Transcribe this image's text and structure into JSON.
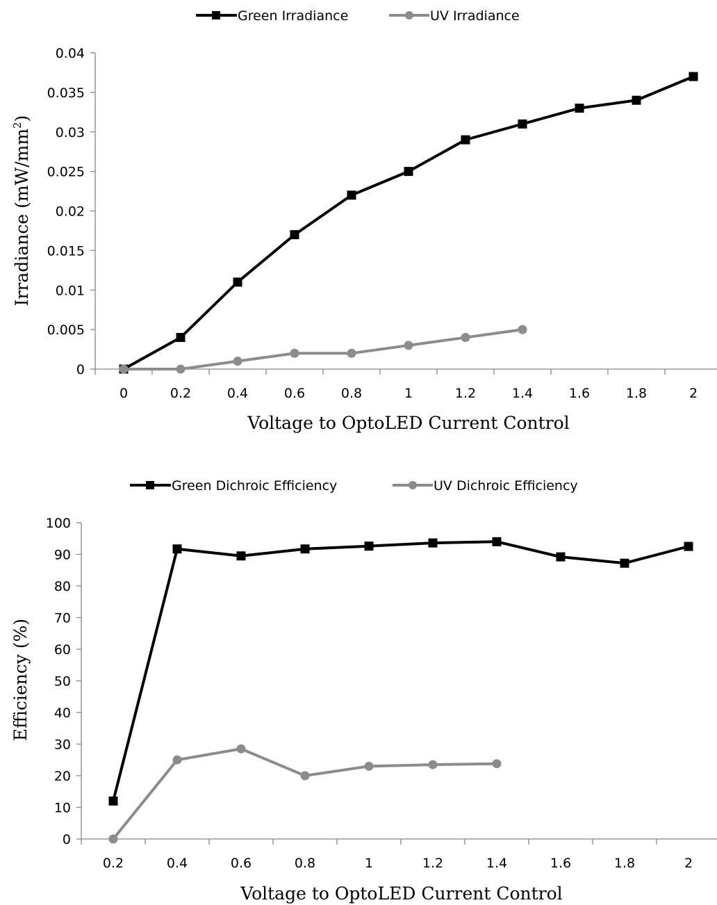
{
  "chart_data": [
    {
      "type": "line",
      "xlabel": "Voltage to OptoLED Current Control",
      "ylabel": "Irradiance (mW/mm",
      "ylabel_superscript": "2",
      "ylabel_suffix": ")",
      "categories": [
        "0",
        "0.2",
        "0.4",
        "0.6",
        "0.8",
        "1",
        "1.2",
        "1.4",
        "1.6",
        "1.8",
        "2"
      ],
      "ylim": [
        0,
        0.04
      ],
      "yticks": [
        "0",
        "0.005",
        "0.01",
        "0.015",
        "0.02",
        "0.025",
        "0.03",
        "0.035",
        "0.04"
      ],
      "grid": false,
      "legend_position": "top",
      "series": [
        {
          "name": "Green Irradiance",
          "color": "#000000",
          "marker": "square",
          "values": [
            0,
            0.004,
            0.011,
            0.017,
            0.022,
            0.025,
            0.029,
            0.031,
            0.033,
            0.034,
            0.037
          ]
        },
        {
          "name": "UV Irradiance",
          "color": "#8c8c8c",
          "marker": "circle",
          "values": [
            0,
            0,
            0.001,
            0.002,
            0.002,
            0.003,
            0.004,
            0.005,
            null,
            null,
            null
          ]
        }
      ]
    },
    {
      "type": "line",
      "xlabel": "Voltage to OptoLED Current Control",
      "ylabel": "Efficiency (%)",
      "categories": [
        "0.2",
        "0.4",
        "0.6",
        "0.8",
        "1",
        "1.2",
        "1.4",
        "1.6",
        "1.8",
        "2"
      ],
      "ylim": [
        0,
        100
      ],
      "yticks": [
        "0",
        "10",
        "20",
        "30",
        "40",
        "50",
        "60",
        "70",
        "80",
        "90",
        "100"
      ],
      "grid": false,
      "legend_position": "top",
      "series": [
        {
          "name": "Green Dichroic Efficiency",
          "color": "#000000",
          "marker": "square",
          "values": [
            12,
            91.7,
            89.5,
            91.7,
            92.6,
            93.6,
            94,
            89.2,
            87.2,
            92.5
          ]
        },
        {
          "name": "UV Dichroic Efficiency",
          "color": "#8c8c8c",
          "marker": "circle",
          "values": [
            0,
            25,
            28.5,
            20,
            23,
            23.5,
            23.8,
            null,
            null,
            null
          ]
        }
      ]
    }
  ]
}
